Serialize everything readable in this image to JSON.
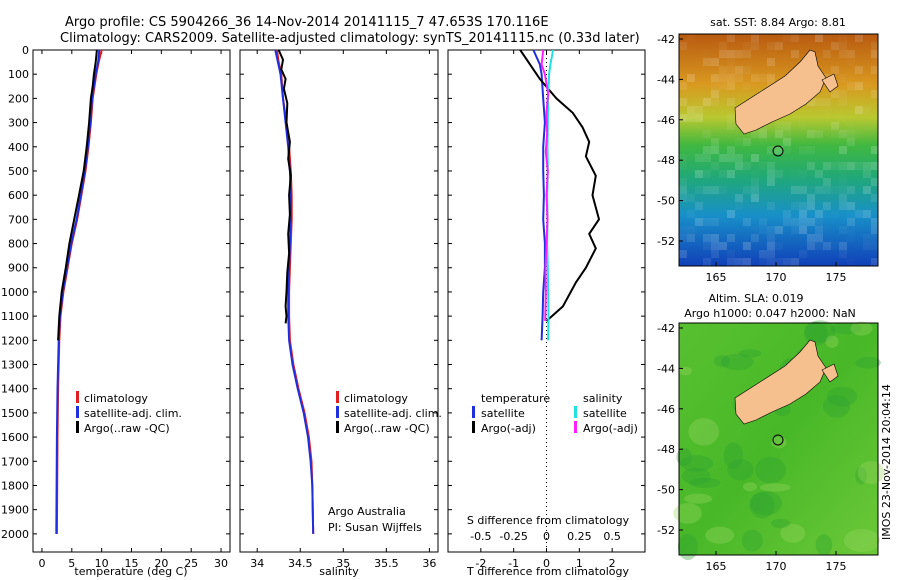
{
  "header": {
    "line1": "Argo profile: CS 5904266_36 14-Nov-2014 20141115_7 47.653S 170.116E",
    "line2": "Climatology: CARS2009. Satellite-adjusted climatology: synTS_20141115.nc (0.33d later)"
  },
  "chart_data": [
    {
      "type": "line",
      "id": "temperature",
      "xlabel": "temperature (deg C)",
      "ylabel": "",
      "xlim": [
        -1.5,
        31.5
      ],
      "ylim": [
        0,
        2075
      ],
      "xticks": [
        0,
        5,
        10,
        15,
        20,
        25,
        30
      ],
      "yticks": [
        0,
        100,
        200,
        300,
        400,
        500,
        600,
        700,
        800,
        900,
        1000,
        1100,
        1200,
        1300,
        1400,
        1500,
        1600,
        1700,
        1800,
        1900,
        2000
      ],
      "legend": [
        "climatology",
        "satellite-adj. clim.",
        "Argo(..raw -QC)"
      ],
      "legend_colors": [
        "#e02020",
        "#1f2fe0",
        "#000000"
      ],
      "series": [
        {
          "name": "climatology",
          "color": "#e02020",
          "x": [
            10.0,
            9.5,
            9.1,
            8.8,
            8.5,
            8.2,
            7.8,
            7.3,
            6.6,
            5.9,
            5.0,
            4.3,
            3.6,
            3.1,
            2.9,
            2.7,
            2.6,
            2.5
          ],
          "y": [
            0,
            50,
            100,
            150,
            200,
            300,
            400,
            500,
            600,
            700,
            800,
            900,
            1000,
            1100,
            1200,
            1400,
            1600,
            2000
          ]
        },
        {
          "name": "satellite-adj. clim.",
          "color": "#1f2fe0",
          "x": [
            9.6,
            9.4,
            9.0,
            8.7,
            8.4,
            8.1,
            7.7,
            7.2,
            6.5,
            5.8,
            4.9,
            4.2,
            3.5,
            3.0,
            2.8,
            2.6,
            2.5,
            2.4
          ],
          "y": [
            0,
            50,
            100,
            150,
            200,
            300,
            400,
            500,
            600,
            700,
            800,
            900,
            1000,
            1100,
            1200,
            1400,
            1600,
            2000
          ]
        },
        {
          "name": "Argo(..raw -QC)",
          "color": "#000000",
          "x": [
            9.2,
            9.0,
            8.7,
            8.5,
            8.2,
            7.9,
            7.5,
            7.0,
            6.2,
            5.4,
            4.6,
            4.0,
            3.3,
            2.9,
            2.7
          ],
          "y": [
            0,
            50,
            100,
            150,
            200,
            300,
            400,
            500,
            600,
            700,
            800,
            900,
            1000,
            1100,
            1200
          ]
        }
      ]
    },
    {
      "type": "line",
      "id": "salinity",
      "xlabel": "salinity",
      "xlim": [
        33.8,
        36.1
      ],
      "ylim": [
        0,
        2075
      ],
      "xticks": [
        34,
        34.5,
        35,
        35.5,
        36
      ],
      "legend": [
        "climatology",
        "satellite-adj. clim.",
        "Argo(..raw -QC)"
      ],
      "legend_colors": [
        "#e02020",
        "#1f2fe0",
        "#000000"
      ],
      "annotation": [
        "Argo Australia",
        "PI: Susan Wijffels"
      ],
      "series": [
        {
          "name": "climatology",
          "color": "#e02020",
          "x": [
            34.23,
            34.25,
            34.28,
            34.3,
            34.34,
            34.37,
            34.39,
            34.4,
            34.4,
            34.39,
            34.38,
            34.37,
            34.37,
            34.38,
            34.42,
            34.48,
            34.55,
            34.6,
            34.63,
            34.64,
            34.65
          ],
          "y": [
            0,
            50,
            100,
            200,
            300,
            400,
            500,
            600,
            700,
            800,
            900,
            1000,
            1100,
            1200,
            1300,
            1400,
            1500,
            1600,
            1700,
            1800,
            2000
          ]
        },
        {
          "name": "satellite-adj. clim.",
          "color": "#1f2fe0",
          "x": [
            34.21,
            34.24,
            34.27,
            34.3,
            34.33,
            34.36,
            34.38,
            34.39,
            34.39,
            34.38,
            34.37,
            34.36,
            34.36,
            34.37,
            34.41,
            34.47,
            34.54,
            34.59,
            34.62,
            34.64,
            34.65
          ],
          "y": [
            0,
            50,
            100,
            200,
            300,
            400,
            500,
            600,
            700,
            800,
            900,
            1000,
            1100,
            1200,
            1300,
            1400,
            1500,
            1600,
            1700,
            1800,
            2000
          ]
        },
        {
          "name": "Argo(..raw -QC)",
          "color": "#000000",
          "x": [
            34.25,
            34.3,
            34.28,
            34.33,
            34.31,
            34.35,
            34.34,
            34.38,
            34.36,
            34.39,
            34.37,
            34.38,
            34.36,
            34.37,
            34.35,
            34.34,
            34.33,
            34.34,
            34.33
          ],
          "y": [
            0,
            40,
            80,
            120,
            160,
            220,
            300,
            380,
            450,
            520,
            600,
            680,
            760,
            840,
            920,
            1000,
            1060,
            1100,
            1130
          ]
        }
      ]
    },
    {
      "type": "line",
      "id": "difference",
      "xlabel": "T difference from climatology",
      "xlabel_top": "S difference from climatology",
      "xlim": [
        -3.0,
        3.0
      ],
      "ylim": [
        0,
        2075
      ],
      "xticks": [
        -2,
        -1,
        0,
        1,
        2
      ],
      "xticks_top": [
        "-0.5",
        "-0.25",
        "0",
        "0.25",
        "0.5"
      ],
      "legend_titles": [
        "temperature",
        "salinity"
      ],
      "legend": [
        "satellite",
        "Argo(-adj)",
        "satellite",
        "Argo(-adj)"
      ],
      "legend_colors": [
        "#1f2fe0",
        "#000000",
        "#20e0e0",
        "#ff20ff"
      ],
      "series": [
        {
          "name": "temperature satellite",
          "color": "#1f2fe0",
          "x": [
            -0.4,
            -0.2,
            -0.15,
            -0.1,
            -0.05,
            -0.1,
            -0.1,
            -0.08,
            -0.1,
            -0.05,
            -0.05,
            -0.1,
            -0.12,
            -0.15
          ],
          "y": [
            0,
            60,
            100,
            200,
            300,
            400,
            500,
            600,
            700,
            800,
            900,
            1000,
            1100,
            1200
          ]
        },
        {
          "name": "temperature Argo(-adj)",
          "color": "#000000",
          "x": [
            -0.8,
            -0.6,
            -0.4,
            -0.2,
            0.3,
            0.8,
            1.1,
            1.3,
            1.2,
            1.5,
            1.4,
            1.6,
            1.3,
            1.5,
            1.2,
            0.9,
            0.5,
            0.0
          ],
          "y": [
            0,
            40,
            80,
            120,
            200,
            260,
            320,
            380,
            440,
            520,
            600,
            700,
            760,
            820,
            900,
            960,
            1060,
            1120
          ]
        },
        {
          "name": "salinity satellite",
          "color": "#20e0e0",
          "x": [
            0.2,
            0.12,
            0.08,
            0.05,
            0.04,
            0.03,
            0.04,
            0.02,
            0.03,
            0.02,
            0.04,
            0.05,
            0.06,
            0.05
          ],
          "y": [
            0,
            60,
            100,
            200,
            300,
            400,
            500,
            600,
            700,
            800,
            900,
            1000,
            1100,
            1200
          ]
        },
        {
          "name": "salinity Argo(-adj)",
          "color": "#ff20ff",
          "x": [
            -0.1,
            -0.15,
            -0.05,
            0.05,
            0.0,
            0.02,
            -0.02,
            0.04,
            0.0,
            0.03,
            0.0,
            -0.03,
            -0.02,
            -0.04
          ],
          "y": [
            0,
            60,
            100,
            180,
            260,
            340,
            420,
            500,
            600,
            700,
            800,
            900,
            1000,
            1120
          ]
        }
      ]
    }
  ],
  "maps": {
    "top": {
      "title": "sat. SST: 8.84  Argo: 8.81",
      "xticks": [
        "165",
        "170",
        "175"
      ],
      "yticks": [
        "-42",
        "-44",
        "-46",
        "-48",
        "-50",
        "-52"
      ]
    },
    "bottom": {
      "title1": "Altim. SLA: 0.019",
      "title2": "Argo h1000: 0.047 h2000: NaN",
      "xticks": [
        "165",
        "170",
        "175"
      ],
      "yticks": [
        "-42",
        "-44",
        "-46",
        "-48",
        "-50",
        "-52"
      ]
    },
    "side_label": "IMOS 23-Nov-2014 20:04:14"
  }
}
